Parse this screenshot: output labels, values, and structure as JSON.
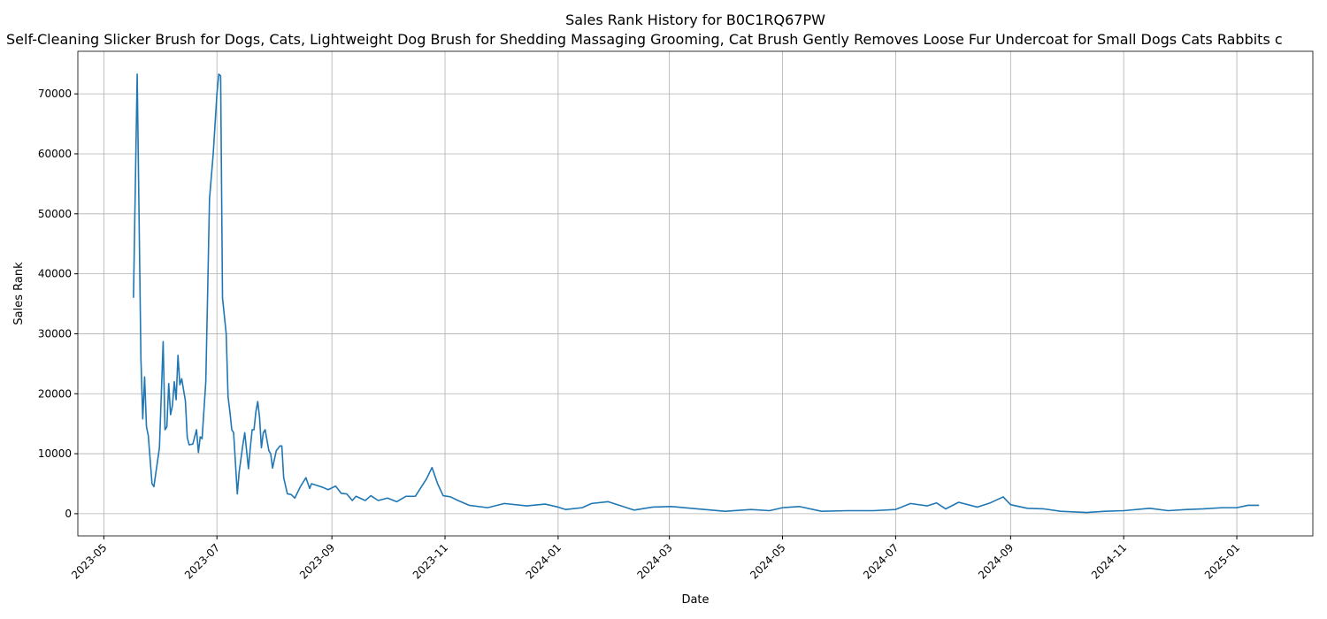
{
  "chart_data": {
    "type": "line",
    "title": "Sales Rank History for B0C1RQ67PW",
    "subtitle": "Self-Cleaning Slicker Brush for Dogs, Cats, Lightweight Dog Brush for Shedding Massaging Grooming, Cat Brush Gently Removes Loose Fur Undercoat for Small Dogs Cats Rabbits c",
    "xlabel": "Date",
    "ylabel": "Sales Rank",
    "x": [
      "2023-05-17",
      "2023-05-19",
      "2023-05-21",
      "2023-05-22",
      "2023-05-23",
      "2023-05-24",
      "2023-05-25",
      "2023-05-27",
      "2023-05-28",
      "2023-05-31",
      "2023-06-02",
      "2023-06-03",
      "2023-06-04",
      "2023-06-05",
      "2023-06-06",
      "2023-06-07",
      "2023-06-08",
      "2023-06-09",
      "2023-06-10",
      "2023-06-11",
      "2023-06-12",
      "2023-06-14",
      "2023-06-15",
      "2023-06-16",
      "2023-06-18",
      "2023-06-20",
      "2023-06-21",
      "2023-06-22",
      "2023-06-23",
      "2023-06-25",
      "2023-06-26",
      "2023-06-27",
      "2023-06-29",
      "2023-07-01",
      "2023-07-02",
      "2023-07-03",
      "2023-07-04",
      "2023-07-06",
      "2023-07-07",
      "2023-07-08",
      "2023-07-09",
      "2023-07-10",
      "2023-07-12",
      "2023-07-13",
      "2023-07-15",
      "2023-07-16",
      "2023-07-18",
      "2023-07-19",
      "2023-07-20",
      "2023-07-21",
      "2023-07-22",
      "2023-07-23",
      "2023-07-24",
      "2023-07-25",
      "2023-07-26",
      "2023-07-27",
      "2023-07-29",
      "2023-07-30",
      "2023-07-31",
      "2023-08-02",
      "2023-08-04",
      "2023-08-05",
      "2023-08-06",
      "2023-08-08",
      "2023-08-10",
      "2023-08-12",
      "2023-08-15",
      "2023-08-18",
      "2023-08-20",
      "2023-08-21",
      "2023-08-24",
      "2023-08-27",
      "2023-08-30",
      "2023-09-03",
      "2023-09-06",
      "2023-09-09",
      "2023-09-12",
      "2023-09-14",
      "2023-09-19",
      "2023-09-22",
      "2023-09-26",
      "2023-10-01",
      "2023-10-06",
      "2023-10-11",
      "2023-10-16",
      "2023-10-22",
      "2023-10-25",
      "2023-10-28",
      "2023-10-31",
      "2023-11-04",
      "2023-11-08",
      "2023-11-14",
      "2023-11-24",
      "2023-12-03",
      "2023-12-15",
      "2023-12-25",
      "2024-01-01",
      "2024-01-05",
      "2024-01-14",
      "2024-01-19",
      "2024-01-28",
      "2024-02-02",
      "2024-02-11",
      "2024-02-21",
      "2024-03-02",
      "2024-03-16",
      "2024-03-31",
      "2024-04-14",
      "2024-04-24",
      "2024-05-01",
      "2024-05-10",
      "2024-05-22",
      "2024-06-05",
      "2024-06-19",
      "2024-07-01",
      "2024-07-09",
      "2024-07-18",
      "2024-07-23",
      "2024-07-28",
      "2024-08-04",
      "2024-08-14",
      "2024-08-21",
      "2024-08-28",
      "2024-09-01",
      "2024-09-10",
      "2024-09-19",
      "2024-09-28",
      "2024-10-12",
      "2024-10-22",
      "2024-11-01",
      "2024-11-15",
      "2024-11-25",
      "2024-12-05",
      "2024-12-14",
      "2024-12-24",
      "2025-01-01",
      "2025-01-07",
      "2025-01-13"
    ],
    "values": [
      36000,
      73300,
      26000,
      15800,
      22800,
      14500,
      13000,
      5000,
      4500,
      11000,
      28700,
      14000,
      14500,
      21700,
      16500,
      18000,
      22000,
      19000,
      26400,
      21500,
      22500,
      18800,
      12700,
      11500,
      11600,
      14000,
      10200,
      12800,
      12500,
      22000,
      37000,
      52500,
      60000,
      70000,
      73300,
      73000,
      36000,
      30000,
      19500,
      17000,
      14000,
      13500,
      3300,
      7000,
      11500,
      13500,
      7500,
      11000,
      14000,
      14000,
      17000,
      18700,
      16000,
      11000,
      13500,
      14000,
      10500,
      10000,
      7600,
      10500,
      11300,
      11300,
      6000,
      3300,
      3200,
      2600,
      4500,
      6000,
      4200,
      5000,
      4700,
      4400,
      4000,
      4600,
      3400,
      3300,
      2200,
      2900,
      2200,
      3000,
      2200,
      2600,
      2000,
      2900,
      2900,
      5800,
      7700,
      5000,
      3000,
      2800,
      2200,
      1400,
      1000,
      1700,
      1300,
      1600,
      1100,
      700,
      1000,
      1700,
      2000,
      1500,
      600,
      1100,
      1200,
      800,
      400,
      700,
      500,
      1000,
      1200,
      400,
      500,
      500,
      700,
      1700,
      1300,
      1800,
      800,
      1900,
      1100,
      1800,
      2800,
      1500,
      900,
      800,
      400,
      200,
      400,
      500,
      900,
      500,
      700,
      800,
      1000,
      1000,
      1400,
      1400
    ],
    "color": "#1f77b4",
    "xlim": [
      "2023-04-17",
      "2025-02-11"
    ],
    "xticks": [
      "2023-05",
      "2023-07",
      "2023-09",
      "2023-11",
      "2024-01",
      "2024-03",
      "2024-05",
      "2024-07",
      "2024-09",
      "2024-11",
      "2025-01"
    ],
    "ylim": [
      -3700,
      77100
    ],
    "yticks": [
      0,
      10000,
      20000,
      30000,
      40000,
      50000,
      60000,
      70000
    ],
    "grid": true
  }
}
